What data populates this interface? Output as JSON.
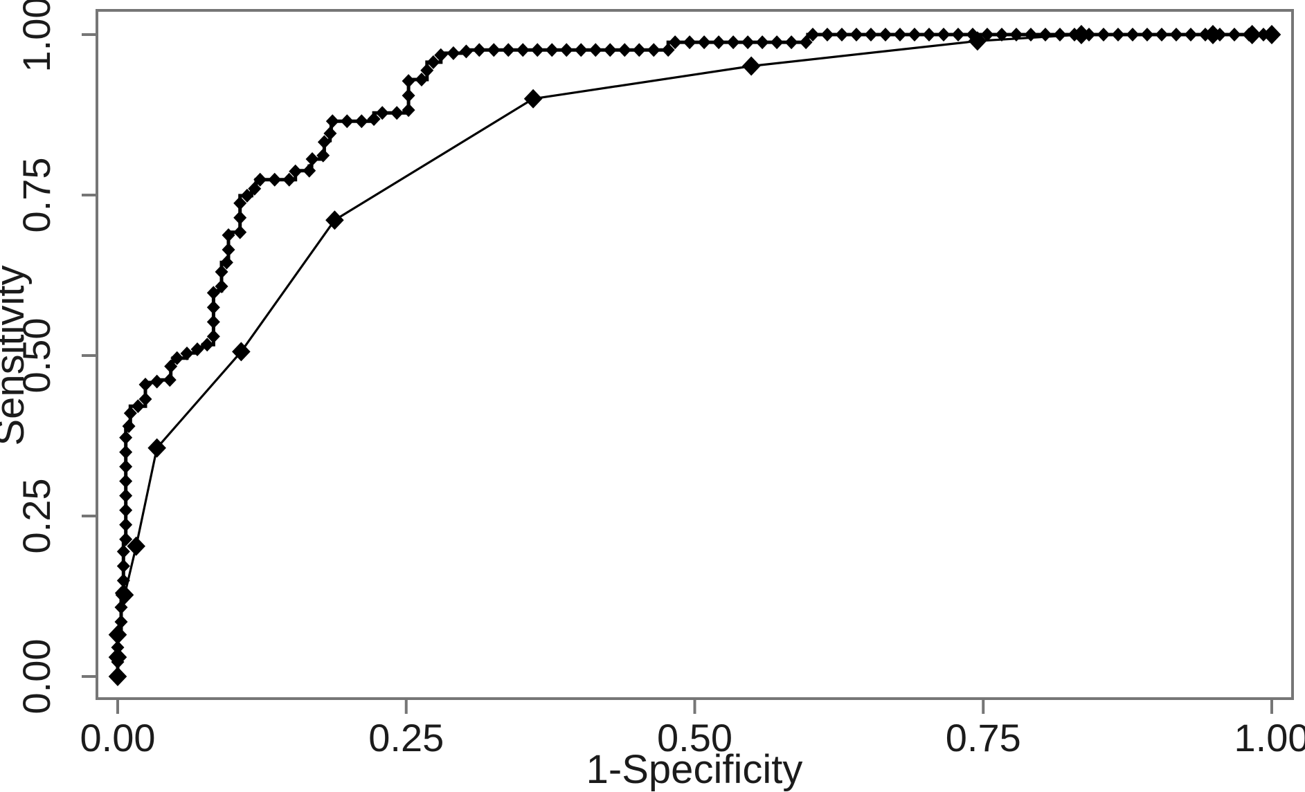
{
  "chart_data": {
    "type": "line",
    "subtype": "roc-curves-staircase-vs-binormal",
    "title": "",
    "xlabel": "1-Specificity",
    "ylabel": "Sensitivity",
    "xlim": [
      0,
      1
    ],
    "ylim": [
      0,
      1
    ],
    "grid": false,
    "legend": "none",
    "background_color": "#ffffff",
    "axis_color": "#767676",
    "text_color": "#1b1b1b",
    "series_color": "#000000",
    "x_ticks": {
      "values": [
        0,
        0.25,
        0.5,
        0.75,
        1
      ],
      "labels": [
        "0.00",
        "0.25",
        "0.50",
        "0.75",
        "1.00"
      ]
    },
    "y_ticks": {
      "values": [
        0,
        0.25,
        0.5,
        0.75,
        1
      ],
      "labels": [
        "0.00",
        "0.25",
        "0.50",
        "0.75",
        "1.00"
      ]
    },
    "series": [
      {
        "name": "empirical-roc-step-curve",
        "style": "step-line-with-dense-small-diamond-markers",
        "points": [
          [
            0.0,
            0.0
          ],
          [
            0.0,
            0.07
          ],
          [
            0.003,
            0.07
          ],
          [
            0.003,
            0.13
          ],
          [
            0.005,
            0.13
          ],
          [
            0.005,
            0.21
          ],
          [
            0.007,
            0.21
          ],
          [
            0.007,
            0.39
          ],
          [
            0.011,
            0.39
          ],
          [
            0.011,
            0.421
          ],
          [
            0.024,
            0.421
          ],
          [
            0.024,
            0.458
          ],
          [
            0.034,
            0.458
          ],
          [
            0.034,
            0.462
          ],
          [
            0.046,
            0.462
          ],
          [
            0.046,
            0.484
          ],
          [
            0.048,
            0.484
          ],
          [
            0.048,
            0.496
          ],
          [
            0.06,
            0.496
          ],
          [
            0.06,
            0.504
          ],
          [
            0.069,
            0.504
          ],
          [
            0.069,
            0.513
          ],
          [
            0.074,
            0.513
          ],
          [
            0.074,
            0.517
          ],
          [
            0.083,
            0.517
          ],
          [
            0.083,
            0.601
          ],
          [
            0.09,
            0.601
          ],
          [
            0.09,
            0.645
          ],
          [
            0.096,
            0.645
          ],
          [
            0.096,
            0.692
          ],
          [
            0.106,
            0.692
          ],
          [
            0.106,
            0.749
          ],
          [
            0.116,
            0.749
          ],
          [
            0.116,
            0.76
          ],
          [
            0.12,
            0.76
          ],
          [
            0.12,
            0.774
          ],
          [
            0.154,
            0.774
          ],
          [
            0.154,
            0.788
          ],
          [
            0.166,
            0.788
          ],
          [
            0.166,
            0.795
          ],
          [
            0.168,
            0.795
          ],
          [
            0.168,
            0.806
          ],
          [
            0.178,
            0.806
          ],
          [
            0.178,
            0.817
          ],
          [
            0.179,
            0.817
          ],
          [
            0.179,
            0.835
          ],
          [
            0.184,
            0.835
          ],
          [
            0.184,
            0.846
          ],
          [
            0.185,
            0.846
          ],
          [
            0.185,
            0.865
          ],
          [
            0.222,
            0.865
          ],
          [
            0.222,
            0.878
          ],
          [
            0.252,
            0.878
          ],
          [
            0.252,
            0.93
          ],
          [
            0.268,
            0.93
          ],
          [
            0.268,
            0.957
          ],
          [
            0.28,
            0.957
          ],
          [
            0.28,
            0.971
          ],
          [
            0.302,
            0.971
          ],
          [
            0.302,
            0.976
          ],
          [
            0.477,
            0.976
          ],
          [
            0.477,
            0.988
          ],
          [
            0.598,
            0.988
          ],
          [
            0.598,
            1.0
          ],
          [
            1.0,
            1.0
          ]
        ]
      },
      {
        "name": "fitted-roc-curve-diamond-markers",
        "style": "line-with-large-diamond-markers",
        "points": [
          [
            0.0,
            0.0
          ],
          [
            0.0,
            0.03
          ],
          [
            0.0,
            0.065
          ],
          [
            0.006,
            0.127
          ],
          [
            0.016,
            0.203
          ],
          [
            0.034,
            0.356
          ],
          [
            0.107,
            0.506
          ],
          [
            0.188,
            0.711
          ],
          [
            0.36,
            0.9
          ],
          [
            0.549,
            0.951
          ],
          [
            0.745,
            0.99
          ],
          [
            0.835,
            1.0
          ],
          [
            0.949,
            1.0
          ],
          [
            0.983,
            1.0
          ],
          [
            1.0,
            1.0
          ]
        ]
      }
    ]
  }
}
